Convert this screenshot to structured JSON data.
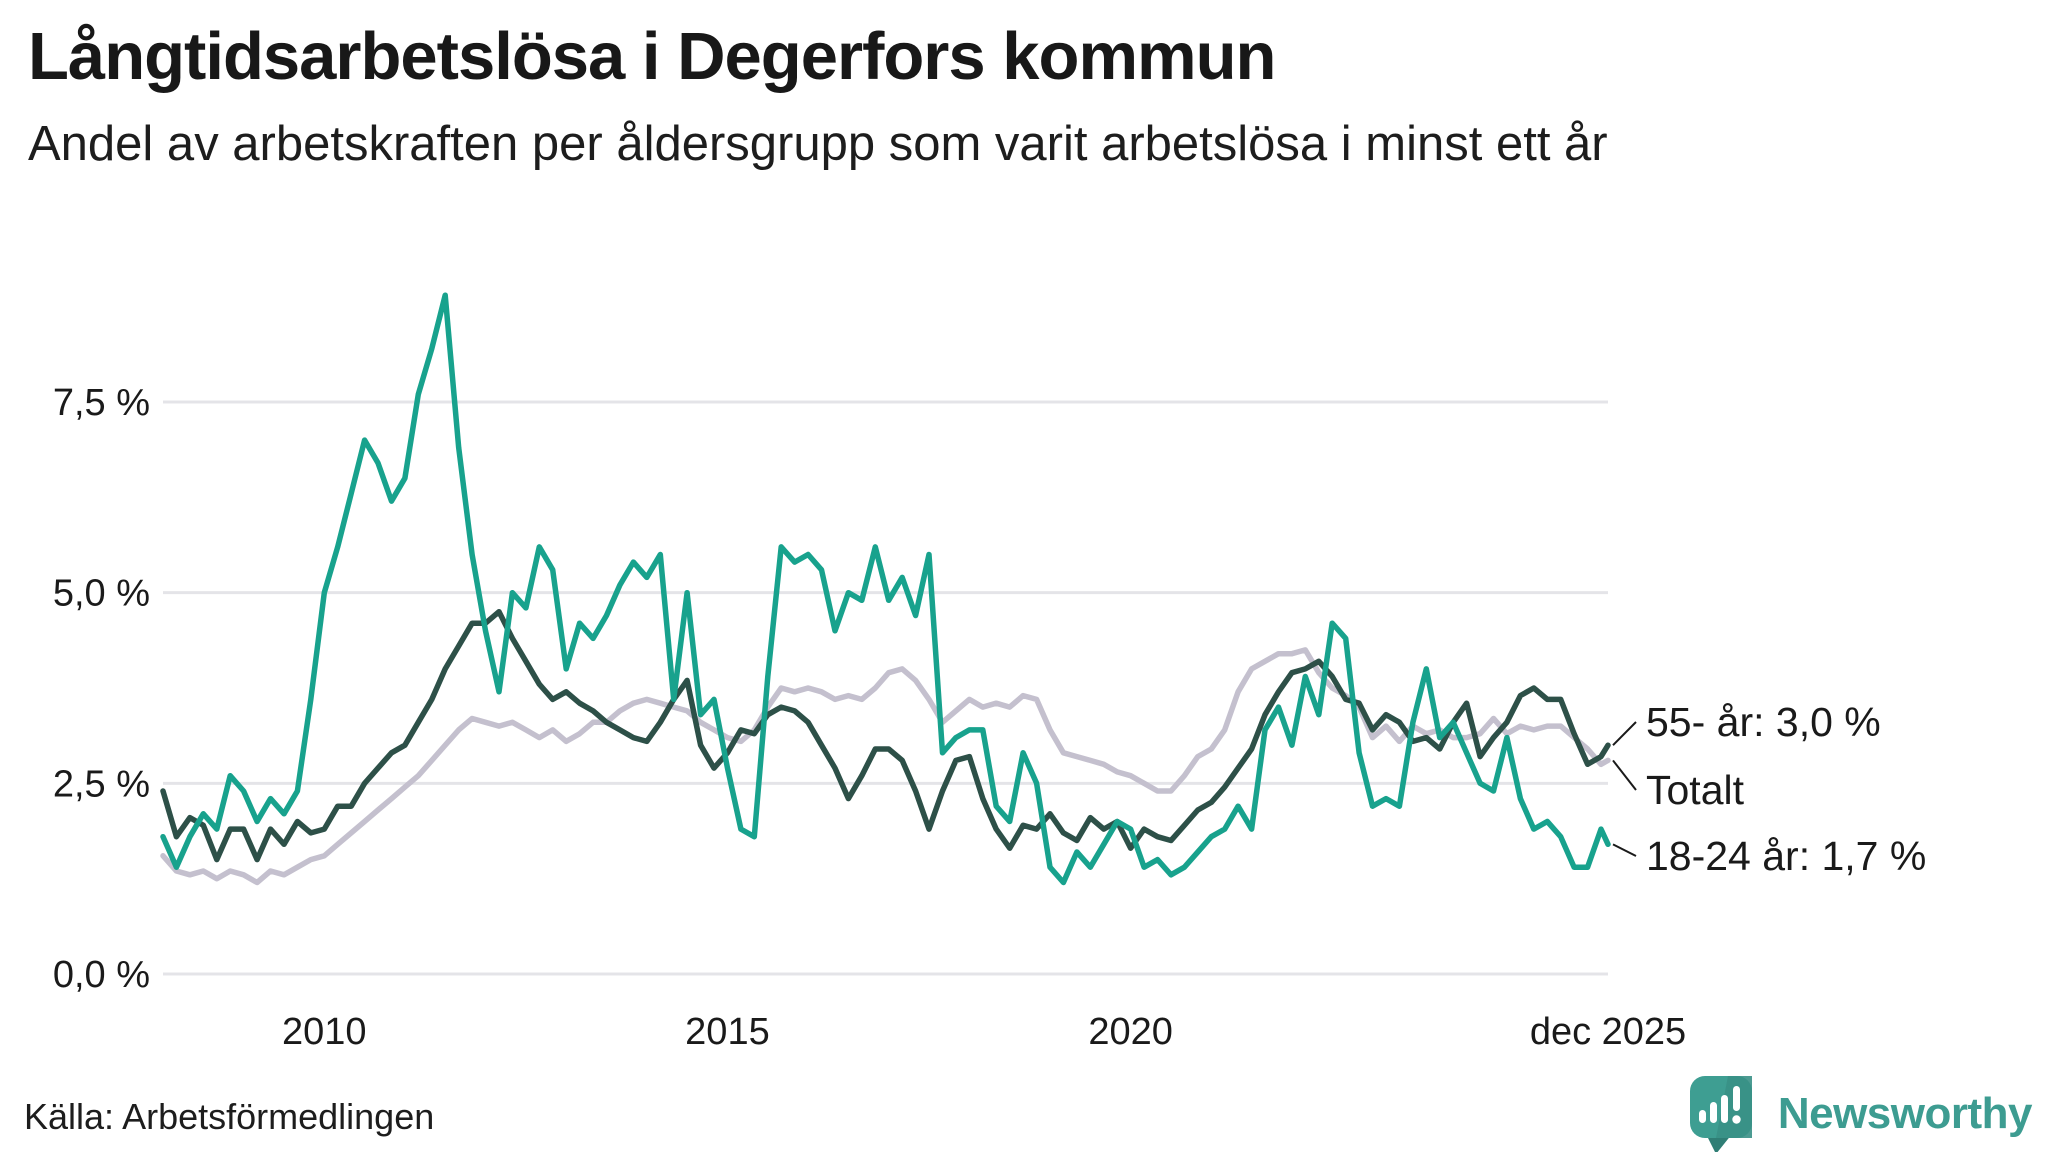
{
  "header": {
    "title": "Långtidsarbetslösa i Degerfors kommun",
    "subtitle": "Andel av arbetskraften per åldersgrupp som varit arbetslösa i minst ett år"
  },
  "footer": {
    "source": "Källa: Arbetsförmedlingen",
    "brand_name": "Newsworthy"
  },
  "colors": {
    "accent_teal": "#18a28d",
    "dark_green": "#2d5048",
    "light_gray_series": "#c4c0ce",
    "gridline": "#e4e4e8",
    "text": "#1a1a1a",
    "brand_teal": "#3d9c91",
    "brand_teal_dark": "#2f7e75"
  },
  "chart_data": {
    "type": "line",
    "title": "Långtidsarbetslösa i Degerfors kommun",
    "subtitle": "Andel av arbetskraften per åldersgrupp som varit arbetslösa i minst ett år",
    "x_unit": "year (monthly series, sampled ~bi-monthly)",
    "x_start": 2008.0,
    "x_step": 0.16667,
    "x_last": 2025.92,
    "ylim": [
      0,
      9.3
    ],
    "grid": "horizontal",
    "yticks": [
      0,
      2.5,
      5.0,
      7.5
    ],
    "ytick_labels": [
      "0,0 %",
      "2,5 %",
      "5,0 %",
      "7,5 %"
    ],
    "xticks": [
      2010,
      2015,
      2020,
      2025.92
    ],
    "xtick_labels": [
      "2010",
      "2015",
      "2020",
      "dec 2025"
    ],
    "legend_position": "right-end-labels",
    "series": [
      {
        "name": "Totalt",
        "end_label": "Totalt",
        "end_value": 2.8,
        "color": "#c4c0ce",
        "values": [
          1.55,
          1.35,
          1.3,
          1.35,
          1.25,
          1.35,
          1.3,
          1.2,
          1.35,
          1.3,
          1.4,
          1.5,
          1.55,
          1.7,
          1.85,
          2.0,
          2.15,
          2.3,
          2.45,
          2.6,
          2.8,
          3.0,
          3.2,
          3.35,
          3.3,
          3.25,
          3.3,
          3.2,
          3.1,
          3.2,
          3.05,
          3.15,
          3.3,
          3.3,
          3.45,
          3.55,
          3.6,
          3.55,
          3.5,
          3.45,
          3.3,
          3.2,
          3.1,
          3.05,
          3.2,
          3.5,
          3.75,
          3.7,
          3.75,
          3.7,
          3.6,
          3.65,
          3.6,
          3.75,
          3.95,
          4.0,
          3.85,
          3.6,
          3.3,
          3.45,
          3.6,
          3.5,
          3.55,
          3.5,
          3.65,
          3.6,
          3.2,
          2.9,
          2.85,
          2.8,
          2.75,
          2.65,
          2.6,
          2.5,
          2.4,
          2.4,
          2.6,
          2.85,
          2.95,
          3.2,
          3.7,
          4.0,
          4.1,
          4.2,
          4.2,
          4.25,
          3.95,
          3.75,
          3.65,
          3.5,
          3.1,
          3.25,
          3.05,
          3.25,
          3.15,
          3.2,
          3.1,
          3.1,
          3.15,
          3.35,
          3.15,
          3.25,
          3.2,
          3.25,
          3.25,
          3.1,
          2.95,
          2.75,
          2.8
        ]
      },
      {
        "name": "55- år",
        "end_label": "55- år: 3,0 %",
        "end_value": 3.0,
        "color": "#2d5048",
        "values": [
          2.4,
          1.8,
          2.05,
          1.95,
          1.5,
          1.9,
          1.9,
          1.5,
          1.9,
          1.7,
          2.0,
          1.85,
          1.9,
          2.2,
          2.2,
          2.5,
          2.7,
          2.9,
          3.0,
          3.3,
          3.6,
          4.0,
          4.3,
          4.6,
          4.6,
          4.75,
          4.4,
          4.1,
          3.8,
          3.6,
          3.7,
          3.55,
          3.45,
          3.3,
          3.2,
          3.1,
          3.05,
          3.3,
          3.6,
          3.85,
          3.0,
          2.7,
          2.9,
          3.2,
          3.15,
          3.4,
          3.5,
          3.45,
          3.3,
          3.0,
          2.7,
          2.3,
          2.6,
          2.95,
          2.95,
          2.8,
          2.4,
          1.9,
          2.4,
          2.8,
          2.85,
          2.3,
          1.9,
          1.65,
          1.95,
          1.9,
          2.1,
          1.85,
          1.75,
          2.05,
          1.9,
          2.0,
          1.65,
          1.9,
          1.8,
          1.75,
          1.95,
          2.15,
          2.25,
          2.45,
          2.7,
          2.95,
          3.4,
          3.7,
          3.95,
          4.0,
          4.1,
          3.9,
          3.6,
          3.55,
          3.2,
          3.4,
          3.3,
          3.05,
          3.1,
          2.95,
          3.3,
          3.55,
          2.85,
          3.1,
          3.3,
          3.65,
          3.75,
          3.6,
          3.6,
          3.15,
          2.75,
          2.85,
          3.0
        ]
      },
      {
        "name": "18-24 år",
        "end_label": "18-24 år: 1,7 %",
        "end_value": 1.7,
        "color": "#18a28d",
        "values": [
          1.8,
          1.4,
          1.8,
          2.1,
          1.9,
          2.6,
          2.4,
          2.0,
          2.3,
          2.1,
          2.4,
          3.6,
          5.0,
          5.6,
          6.3,
          7.0,
          6.7,
          6.2,
          6.5,
          7.6,
          8.2,
          8.9,
          6.9,
          5.5,
          4.5,
          3.7,
          5.0,
          4.8,
          5.6,
          5.3,
          4.0,
          4.6,
          4.4,
          4.7,
          5.1,
          5.4,
          5.2,
          5.5,
          3.6,
          5.0,
          3.4,
          3.6,
          2.7,
          1.9,
          1.8,
          3.9,
          5.6,
          5.4,
          5.5,
          5.3,
          4.5,
          5.0,
          4.9,
          5.6,
          4.9,
          5.2,
          4.7,
          5.5,
          2.9,
          3.1,
          3.2,
          3.2,
          2.2,
          2.0,
          2.9,
          2.5,
          1.4,
          1.2,
          1.6,
          1.4,
          1.7,
          2.0,
          1.9,
          1.4,
          1.5,
          1.3,
          1.4,
          1.6,
          1.8,
          1.9,
          2.2,
          1.9,
          3.2,
          3.5,
          3.0,
          3.9,
          3.4,
          4.6,
          4.4,
          2.9,
          2.2,
          2.3,
          2.2,
          3.3,
          4.0,
          3.1,
          3.3,
          2.9,
          2.5,
          2.4,
          3.1,
          2.3,
          1.9,
          2.0,
          1.8,
          1.4,
          1.4,
          1.9,
          1.7
        ]
      }
    ]
  }
}
